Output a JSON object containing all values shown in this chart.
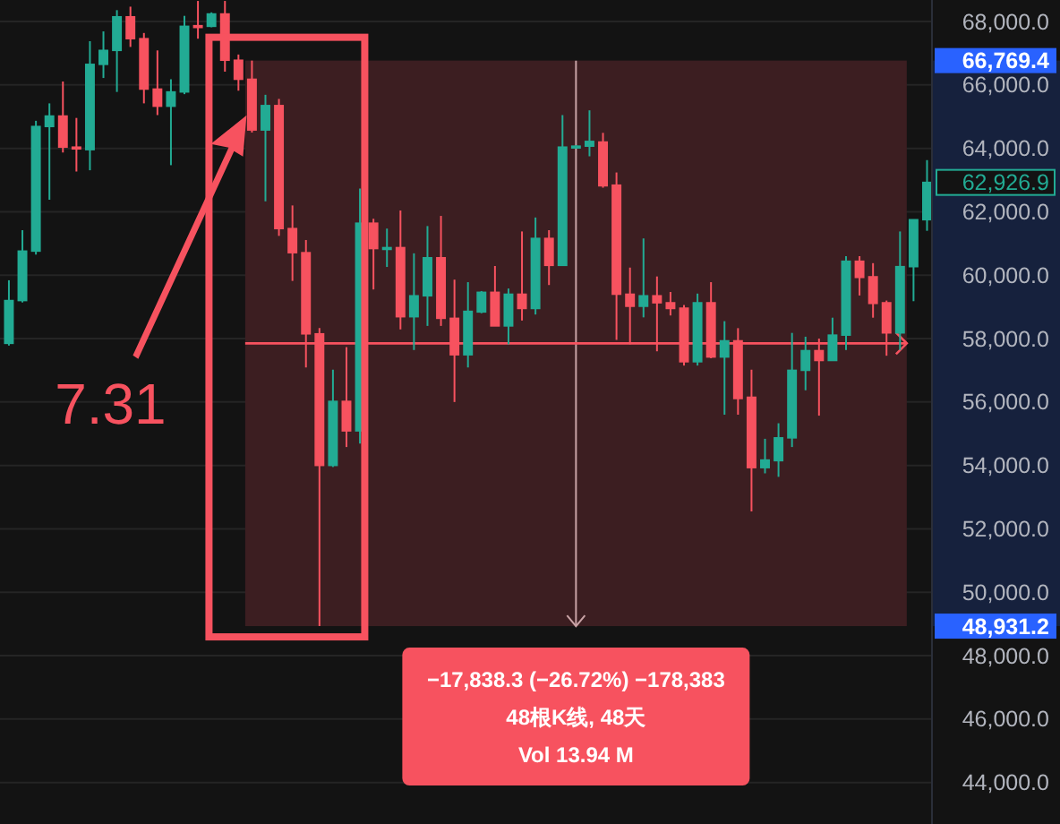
{
  "chart_data": {
    "type": "candlestick",
    "categories": [
      null,
      null,
      null,
      null,
      null,
      null,
      null,
      null,
      null,
      null,
      null,
      null,
      null,
      null,
      null,
      null,
      null,
      null,
      null,
      null,
      null,
      null,
      null,
      null,
      null,
      null,
      null,
      null,
      null,
      null,
      null,
      null,
      null,
      null,
      null,
      null,
      null,
      null,
      null,
      null,
      null,
      null,
      null,
      null,
      null,
      null,
      null,
      null,
      null,
      null,
      null,
      null,
      null,
      null,
      null,
      null,
      null,
      null,
      null,
      null,
      null,
      null,
      null,
      null,
      null,
      null,
      null,
      null,
      null
    ],
    "ohlc": [
      [
        57850,
        59840,
        57780,
        59200
      ],
      [
        59200,
        61420,
        59140,
        60760
      ],
      [
        60760,
        64870,
        60650,
        64690
      ],
      [
        64690,
        65420,
        62380,
        65020
      ],
      [
        65020,
        66110,
        63870,
        64040
      ],
      [
        64040,
        64960,
        63270,
        63990
      ],
      [
        63960,
        67380,
        63310,
        66650
      ],
      [
        66650,
        67690,
        66220,
        67090
      ],
      [
        67090,
        68360,
        65780,
        68150
      ],
      [
        68150,
        68470,
        67200,
        67460
      ],
      [
        67460,
        67640,
        65420,
        65870
      ],
      [
        65870,
        67090,
        65050,
        65330
      ],
      [
        65330,
        66180,
        63470,
        65780
      ],
      [
        65780,
        68180,
        65710,
        67850
      ],
      [
        67870,
        68650,
        67460,
        67840
      ],
      [
        67850,
        68290,
        67820,
        68240
      ],
      [
        68240,
        68650,
        66420,
        66780
      ],
      [
        66780,
        66960,
        65820,
        66180
      ],
      [
        66180,
        66769.4,
        64500,
        64580
      ],
      [
        64580,
        65690,
        62330,
        65350
      ],
      [
        65350,
        65560,
        61240,
        61470
      ],
      [
        61470,
        62200,
        59820,
        60710
      ],
      [
        60710,
        61110,
        57090,
        58150
      ],
      [
        58150,
        58330,
        48931.2,
        54000
      ],
      [
        54000,
        57020,
        53950,
        56020
      ],
      [
        56020,
        57730,
        54580,
        55090
      ],
      [
        55090,
        62730,
        54690,
        61640
      ],
      [
        61640,
        61780,
        59550,
        60840
      ],
      [
        60820,
        61470,
        60260,
        60870
      ],
      [
        60870,
        62040,
        58290,
        58690
      ],
      [
        58690,
        60690,
        57640,
        59350
      ],
      [
        59350,
        61550,
        58400,
        60550
      ],
      [
        60550,
        61870,
        58400,
        58640
      ],
      [
        58640,
        59860,
        56000,
        57490
      ],
      [
        57490,
        59780,
        57090,
        58860
      ],
      [
        58840,
        59500,
        58800,
        59460
      ],
      [
        59460,
        60290,
        58400,
        58400
      ],
      [
        58400,
        59580,
        57820,
        59400
      ],
      [
        59400,
        61380,
        58570,
        58950
      ],
      [
        58950,
        61820,
        58760,
        61160
      ],
      [
        61160,
        61420,
        59690,
        60310
      ],
      [
        60310,
        65050,
        60310,
        64040
      ],
      [
        64040,
        64100,
        64000,
        64070
      ],
      [
        64070,
        65200,
        63750,
        64220
      ],
      [
        64200,
        64490,
        62760,
        62820
      ],
      [
        62840,
        63240,
        57960,
        59400
      ],
      [
        59400,
        60240,
        57820,
        59020
      ],
      [
        59020,
        61160,
        58670,
        59350
      ],
      [
        59350,
        59960,
        57600,
        59130
      ],
      [
        59130,
        59470,
        58730,
        58950
      ],
      [
        58960,
        59060,
        57150,
        57270
      ],
      [
        57270,
        59420,
        57150,
        59130
      ],
      [
        59130,
        59780,
        57380,
        57420
      ],
      [
        57420,
        58550,
        55600,
        57930
      ],
      [
        57930,
        58330,
        55600,
        56110
      ],
      [
        56150,
        57020,
        52550,
        53930
      ],
      [
        53930,
        54840,
        53750,
        54170
      ],
      [
        54150,
        55330,
        53640,
        54870
      ],
      [
        54870,
        58180,
        54580,
        57000
      ],
      [
        57000,
        58060,
        56370,
        57620
      ],
      [
        57620,
        58000,
        55570,
        57310
      ],
      [
        57310,
        58660,
        57310,
        58110
      ],
      [
        58110,
        60600,
        57640,
        60440
      ],
      [
        60440,
        60600,
        59360,
        59930
      ],
      [
        59950,
        60380,
        58660,
        59110
      ],
      [
        59130,
        59200,
        57460,
        58180
      ],
      [
        58180,
        61380,
        57640,
        60270
      ],
      [
        60270,
        61750,
        59180,
        61750
      ],
      [
        61750,
        63630,
        61400,
        62926.9
      ]
    ],
    "colors": [
      "#22ab94",
      "#22ab94",
      "#22ab94",
      "#22ab94",
      "#f7525f",
      "#f7525f",
      "#22ab94",
      "#22ab94",
      "#22ab94",
      "#f7525f",
      "#f7525f",
      "#f7525f",
      "#22ab94",
      "#22ab94",
      "#f7525f",
      "#22ab94",
      "#f7525f",
      "#f7525f",
      "#f7525f",
      "#22ab94",
      "#f7525f",
      "#f7525f",
      "#f7525f",
      "#f7525f",
      "#22ab94",
      "#f7525f",
      "#22ab94",
      "#f7525f",
      "#22ab94",
      "#f7525f",
      "#22ab94",
      "#22ab94",
      "#f7525f",
      "#f7525f",
      "#22ab94",
      "#22ab94",
      "#f7525f",
      "#22ab94",
      "#f7525f",
      "#22ab94",
      "#f7525f",
      "#22ab94",
      "#22ab94",
      "#22ab94",
      "#f7525f",
      "#f7525f",
      "#f7525f",
      "#22ab94",
      "#f7525f",
      "#f7525f",
      "#f7525f",
      "#22ab94",
      "#f7525f",
      "#22ab94",
      "#f7525f",
      "#f7525f",
      "#22ab94",
      "#22ab94",
      "#22ab94",
      "#22ab94",
      "#f7525f",
      "#22ab94",
      "#22ab94",
      "#f7525f",
      "#f7525f",
      "#f7525f",
      "#22ab94",
      "#22ab94",
      "#22ab94"
    ],
    "yticks": [
      {
        "value": 44000,
        "label": "44,000.0"
      },
      {
        "value": 46000,
        "label": "46,000.0"
      },
      {
        "value": 48000,
        "label": "48,000.0"
      },
      {
        "value": 48931.2,
        "label": "48,931.2"
      },
      {
        "value": 50000,
        "label": "50,000.0"
      },
      {
        "value": 52000,
        "label": "52,000.0"
      },
      {
        "value": 54000,
        "label": "54,000.0"
      },
      {
        "value": 56000,
        "label": "56,000.0"
      },
      {
        "value": 58000,
        "label": "58,000.0"
      },
      {
        "value": 60000,
        "label": "60,000.0"
      },
      {
        "value": 62000,
        "label": "62,000.0"
      },
      {
        "value": 62926.9,
        "label": "62,926.9"
      },
      {
        "value": 64000,
        "label": "64,000.0"
      },
      {
        "value": 66000,
        "label": "66,000.0"
      },
      {
        "value": 66769.4,
        "label": "66,769.4"
      },
      {
        "value": 68000,
        "label": "68,000.0"
      }
    ],
    "tick_labels": "y",
    "grid": "y",
    "ylim": [
      42690,
      68680
    ],
    "bands": [
      {
        "axis": "y",
        "from": 48931.2,
        "to": 66769.4,
        "color": "#3c1e21"
      }
    ],
    "ref_lines": [
      {
        "axis": "y",
        "value": 57850,
        "color": "#f7525f"
      }
    ],
    "annotations": [
      "7.31",
      "−17,838.3 (−26.72%) −178,383",
      "48根K线, 48天",
      "Vol 13.94 M"
    ]
  }
}
